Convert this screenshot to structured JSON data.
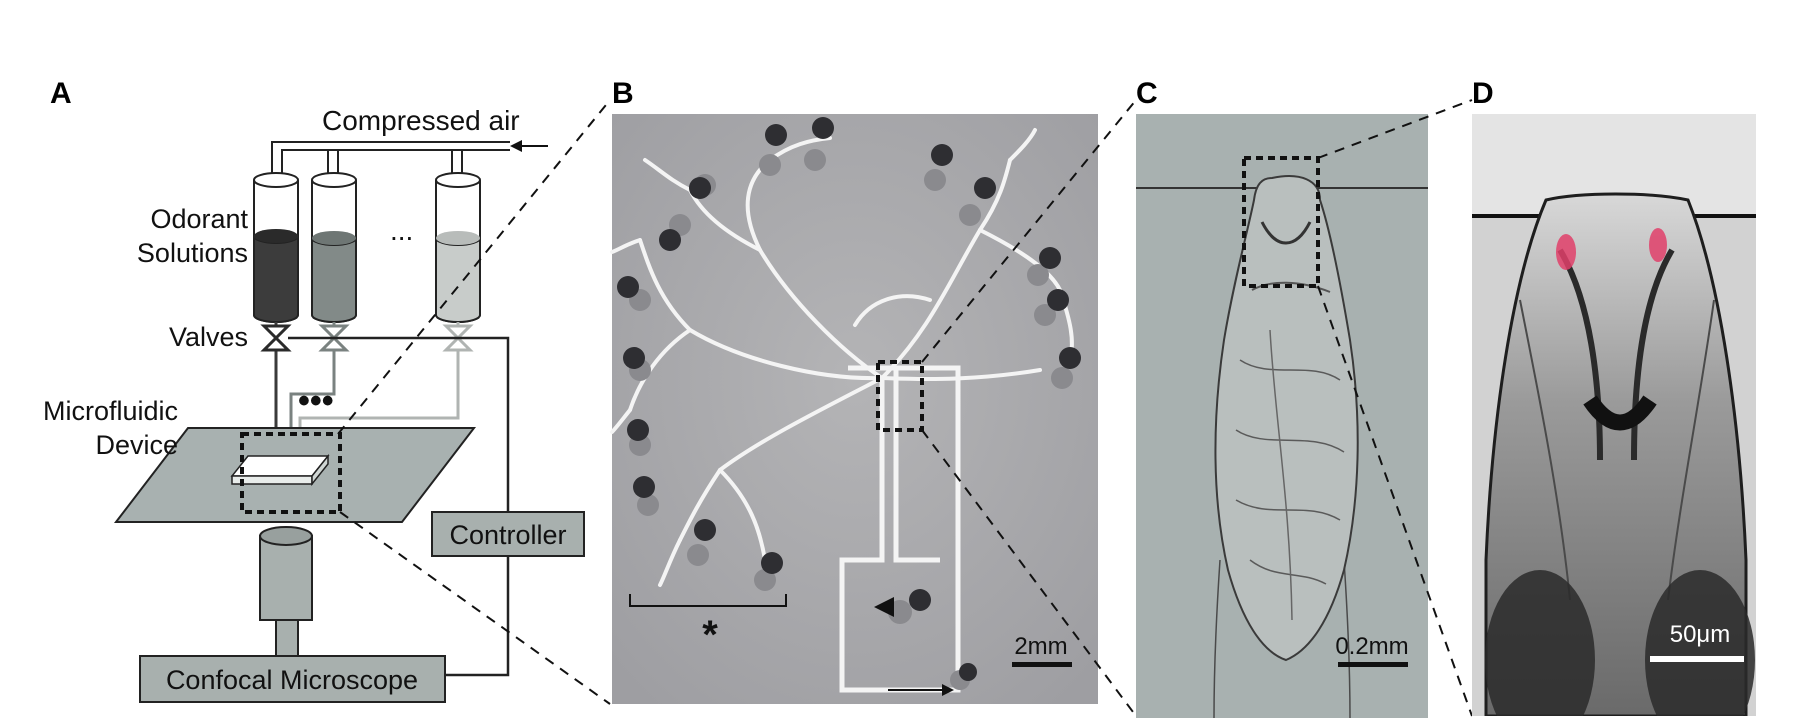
{
  "panels": {
    "a": {
      "label": "A"
    },
    "b": {
      "label": "B"
    },
    "c": {
      "label": "C"
    },
    "d": {
      "label": "D"
    }
  },
  "schematic": {
    "compressed_air": "Compressed air",
    "odorant_line1": "Odorant",
    "odorant_line2": "Solutions",
    "ellipsis": "...",
    "valves": "Valves",
    "device_dots": "•••",
    "microfluidic_line1": "Microfluidic",
    "microfluidic_line2": "Device",
    "controller": "Controller",
    "confocal": "Confocal Microscope"
  },
  "photo_b": {
    "scale": "2mm",
    "asterisk": "*"
  },
  "photo_c": {
    "scale": "0.2mm"
  },
  "photo_d": {
    "scale": "50μm"
  },
  "colors": {
    "dark_fill": "#3c3c3c",
    "mid_fill": "#828a88",
    "light_fill": "#c8ccca",
    "device": "#a8b1b0",
    "box": "#a8b0ae"
  }
}
